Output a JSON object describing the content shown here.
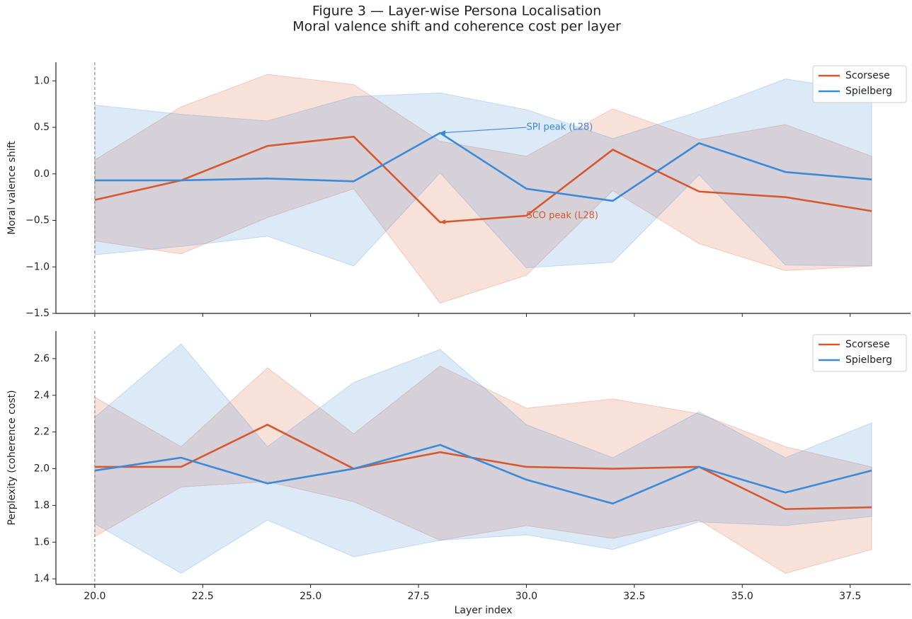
{
  "title": "Figure 3 — Layer-wise Persona Localisation",
  "subtitle": "Moral valence shift and coherence cost per layer",
  "chart_data": [
    {
      "type": "line",
      "ylabel": "Moral valence shift",
      "x": [
        20,
        22,
        24,
        26,
        28,
        30,
        32,
        34,
        36,
        38
      ],
      "xlim": [
        19.1,
        38.9
      ],
      "xticks": [
        20,
        22.5,
        25,
        27.5,
        30,
        32.5,
        35,
        37.5
      ],
      "xticklabels": false,
      "ylim": [
        -1.5,
        1.2
      ],
      "yticks": [
        {
          "value": -1.5,
          "label": "−1.5"
        },
        {
          "value": -1,
          "label": "−1.0"
        },
        {
          "value": -0.5,
          "label": "−0.5"
        },
        {
          "value": 0,
          "label": "0.0"
        },
        0.5,
        {
          "value": 1,
          "label": "1.0"
        }
      ],
      "vline": 20,
      "legend": "upper right",
      "series": [
        {
          "name": "Scorsese",
          "color": "#d6582f",
          "values": [
            -0.28,
            -0.07,
            0.3,
            0.4,
            -0.52,
            -0.45,
            0.26,
            -0.19,
            -0.25,
            -0.4
          ],
          "upper": [
            0.15,
            0.72,
            1.07,
            0.96,
            0.35,
            0.19,
            0.7,
            0.37,
            0.53,
            0.19
          ],
          "lower": [
            -0.72,
            -0.86,
            -0.47,
            -0.16,
            -1.39,
            -1.09,
            -0.18,
            -0.75,
            -1.04,
            -0.99
          ]
        },
        {
          "name": "Spielberg",
          "color": "#3b8ad9",
          "values": [
            -0.07,
            -0.07,
            -0.05,
            -0.08,
            0.44,
            -0.16,
            -0.29,
            0.33,
            0.02,
            -0.06
          ],
          "upper": [
            0.74,
            0.64,
            0.57,
            0.83,
            0.87,
            0.69,
            0.38,
            0.67,
            1.02,
            0.88
          ],
          "lower": [
            -0.87,
            -0.78,
            -0.67,
            -0.99,
            0.01,
            -1.01,
            -0.95,
            -0.01,
            -0.98,
            -0.99
          ]
        }
      ],
      "annotations": [
        {
          "text": "SPI peak (L28)",
          "x": 28,
          "y": 0.44,
          "text_x": 30,
          "text_y": 0.5,
          "color": "#3b8ad9"
        },
        {
          "text": "SCO peak (L28)",
          "x": 28,
          "y": -0.52,
          "text_x": 30,
          "text_y": -0.45,
          "color": "#d6582f"
        }
      ]
    },
    {
      "type": "line",
      "ylabel": "Perplexity (coherence cost)",
      "xlabel": "Layer index",
      "x": [
        20,
        22,
        24,
        26,
        28,
        30,
        32,
        34,
        36,
        38
      ],
      "xlim": [
        19.1,
        38.9
      ],
      "xticks": [
        {
          "value": 20,
          "label": "20.0"
        },
        22.5,
        {
          "value": 25,
          "label": "25.0"
        },
        27.5,
        {
          "value": 30,
          "label": "30.0"
        },
        32.5,
        {
          "value": 35,
          "label": "35.0"
        },
        37.5
      ],
      "ylim": [
        1.37,
        2.75
      ],
      "yticks": [
        1.4,
        1.6,
        1.8,
        {
          "value": 2,
          "label": "2.0"
        },
        2.2,
        2.4,
        2.6
      ],
      "vline": 20,
      "legend": "upper right",
      "series": [
        {
          "name": "Scorsese",
          "color": "#d6582f",
          "values": [
            2.01,
            2.01,
            2.24,
            2.0,
            2.09,
            2.01,
            2.0,
            2.01,
            1.78,
            1.79
          ],
          "upper": [
            2.39,
            2.12,
            2.55,
            2.19,
            2.56,
            2.33,
            2.38,
            2.3,
            2.12,
            2.01
          ],
          "lower": [
            1.63,
            1.9,
            1.93,
            1.82,
            1.61,
            1.69,
            1.62,
            1.72,
            1.43,
            1.56
          ]
        },
        {
          "name": "Spielberg",
          "color": "#3b8ad9",
          "values": [
            1.99,
            2.06,
            1.92,
            2.0,
            2.13,
            1.94,
            1.81,
            2.01,
            1.87,
            1.99
          ],
          "upper": [
            2.28,
            2.68,
            2.12,
            2.47,
            2.65,
            2.24,
            2.06,
            2.31,
            2.06,
            2.25
          ],
          "lower": [
            1.7,
            1.43,
            1.72,
            1.52,
            1.61,
            1.64,
            1.56,
            1.71,
            1.69,
            1.74
          ]
        }
      ]
    }
  ]
}
